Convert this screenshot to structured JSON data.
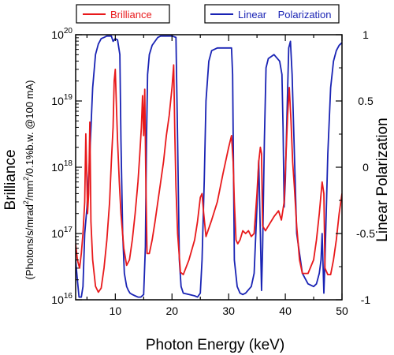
{
  "chart_data": {
    "type": "line",
    "xlabel": "Photon Energy (keV)",
    "ylabel": "Brilliance",
    "ylabel_units_parts": [
      "(Photons/s/mrad",
      "2",
      "/mm",
      "2",
      "/0.1%b.w. @100 mA)"
    ],
    "y2label": "Linear Polarization",
    "xlim": [
      3,
      50
    ],
    "ylim": [
      1e+16,
      1e+20
    ],
    "yscale": "log",
    "y2lim": [
      -1,
      1
    ],
    "xticks": [
      "10",
      "20",
      "30",
      "40",
      "50"
    ],
    "yticks": [
      {
        "base": "10",
        "exp": "16"
      },
      {
        "base": "10",
        "exp": "17"
      },
      {
        "base": "10",
        "exp": "18"
      },
      {
        "base": "10",
        "exp": "19"
      },
      {
        "base": "10",
        "exp": "20"
      }
    ],
    "y2ticks": [
      "-1",
      "-0.5",
      "0",
      "0.5",
      "1"
    ],
    "grid": false,
    "legend": [
      {
        "name": "Brilliance",
        "color": "#e8191b",
        "axis": "left"
      },
      {
        "name": "Linear    Polarization",
        "color": "#1923b4",
        "axis": "right"
      }
    ],
    "series": [
      {
        "name": "Brilliance",
        "color": "#e8191b",
        "axis": "left",
        "x": [
          3,
          3.3,
          3.7,
          4.0,
          4.3,
          4.6,
          4.8,
          5.0,
          5.1,
          5.3,
          5.5,
          5.7,
          6.0,
          6.5,
          7.0,
          7.5,
          8.0,
          8.5,
          9.0,
          9.3,
          9.6,
          9.8,
          10.0,
          10.2,
          10.4,
          10.7,
          11.0,
          11.5,
          12.0,
          12.5,
          13.0,
          13.5,
          14.0,
          14.3,
          14.6,
          14.8,
          15.0,
          15.2,
          15.4,
          15.6,
          16.0,
          16.5,
          17.0,
          17.5,
          18.0,
          18.5,
          19.0,
          19.5,
          20.0,
          20.3,
          20.5,
          20.7,
          21.0,
          21.5,
          22,
          23,
          24,
          24.5,
          25,
          25.3,
          25.6,
          26,
          27,
          28,
          29,
          30,
          30.5,
          30.8,
          31.0,
          31.3,
          31.6,
          32,
          32.5,
          33,
          33.5,
          34,
          34.5,
          35,
          35.3,
          35.6,
          35.8,
          36.0,
          36.5,
          37,
          38,
          38.8,
          39.3,
          39.8,
          40.1,
          40.4,
          40.7,
          41.0,
          41.3,
          41.6,
          42,
          42.5,
          43,
          44,
          45,
          45.5,
          46,
          46.5,
          46.8,
          47,
          47.5,
          48,
          48.5,
          49,
          49.5,
          50
        ],
        "y": [
          7e+16,
          4e+16,
          3e+16,
          5e+16,
          1e+17,
          3e+17,
          3.2e+18,
          5.5e+17,
          2e+17,
          4e+17,
          4.8e+18,
          1.5e+17,
          4e+16,
          1.6e+16,
          1.3e+16,
          1.5e+16,
          3e+16,
          8e+16,
          3e+17,
          1.2e+18,
          4e+18,
          2e+19,
          3e+19,
          8e+18,
          2.5e+18,
          6e+17,
          2e+17,
          6e+16,
          3.3e+16,
          4e+16,
          8e+16,
          2e+17,
          6e+17,
          1.5e+18,
          4e+18,
          1.2e+19,
          3e+18,
          1.5e+19,
          5e+17,
          5e+16,
          5e+16,
          8e+16,
          1.5e+17,
          3e+17,
          6e+17,
          1.2e+18,
          3e+18,
          6e+18,
          1.6e+19,
          3.5e+19,
          3e+18,
          5e+17,
          1e+17,
          2.6e+16,
          2.4e+16,
          4e+16,
          8e+16,
          1.5e+17,
          3.5e+17,
          4e+17,
          2e+17,
          9e+16,
          1.6e+17,
          3e+17,
          8e+17,
          2e+18,
          3e+18,
          1.2e+18,
          3e+17,
          8e+16,
          7e+16,
          8e+16,
          1.1e+17,
          1e+17,
          1.1e+17,
          9e+16,
          1e+17,
          4e+17,
          1.2e+18,
          2e+18,
          1.6e+18,
          1.3e+17,
          1.1e+17,
          1.3e+17,
          1.8e+17,
          2.2e+17,
          1.6e+17,
          3e+17,
          1.4e+18,
          6e+18,
          1.6e+19,
          5e+18,
          1.2e+18,
          5e+17,
          1.3e+17,
          4e+16,
          2.5e+16,
          2.5e+16,
          4e+16,
          8e+16,
          2e+17,
          6e+17,
          4e+17,
          3e+16,
          2.4e+16,
          2.4e+16,
          4e+16,
          8e+16,
          2e+17,
          4e+17
        ]
      },
      {
        "name": "Linear    Polarization",
        "color": "#1923b4",
        "axis": "right",
        "x": [
          3,
          3.3,
          3.6,
          4.0,
          4.3,
          4.6,
          5.0,
          5.5,
          6.0,
          6.5,
          7.0,
          7.5,
          8.0,
          8.5,
          9.0,
          9.3,
          9.6,
          10.0,
          10.4,
          10.8,
          11.0,
          11.3,
          11.6,
          12.0,
          12.3,
          12.6,
          13.0,
          13.5,
          14,
          14.5,
          15.0,
          15.3,
          15.5,
          15.7,
          16.0,
          16.5,
          17.0,
          17.5,
          18,
          19,
          20,
          20.7,
          21.0,
          21.3,
          21.6,
          22.0,
          23,
          24,
          24.5,
          25.0,
          25.3,
          25.7,
          26,
          26.5,
          27,
          28,
          29,
          30,
          30.5,
          30.7,
          31.0,
          31.5,
          32.0,
          32.5,
          33,
          34,
          34.5,
          35,
          35.3,
          35.6,
          35.8,
          36.0,
          36.3,
          36.6,
          37,
          38,
          39,
          39.4,
          39.6,
          39.8,
          40.0,
          40.3,
          40.6,
          40.9,
          41.2,
          41.6,
          42,
          43,
          44,
          45,
          45.5,
          46,
          46.3,
          46.5,
          46.8,
          47.0,
          47.5,
          48,
          48.5,
          49,
          49.5,
          50
        ],
        "y": [
          -0.7,
          -0.85,
          -0.98,
          -0.98,
          -0.9,
          -0.5,
          -0.3,
          0.1,
          0.6,
          0.85,
          0.93,
          0.97,
          0.98,
          0.99,
          0.99,
          0.99,
          0.95,
          0.97,
          0.96,
          0.85,
          0.2,
          -0.5,
          -0.8,
          -0.9,
          -0.93,
          -0.95,
          -0.96,
          -0.97,
          -0.98,
          -0.98,
          -0.96,
          -0.6,
          0.2,
          0.7,
          0.85,
          0.92,
          0.95,
          0.98,
          0.99,
          0.99,
          0.99,
          0.98,
          0.2,
          -0.7,
          -0.9,
          -0.95,
          -0.96,
          -0.97,
          -0.98,
          -0.95,
          -0.7,
          -0.1,
          0.5,
          0.8,
          0.88,
          0.9,
          0.9,
          0.9,
          0.9,
          0.7,
          -0.7,
          -0.9,
          -0.95,
          -0.96,
          -0.95,
          -0.9,
          -0.8,
          -0.3,
          0.05,
          -0.5,
          -0.93,
          -0.6,
          0.2,
          0.75,
          0.82,
          0.85,
          0.8,
          0.7,
          0.3,
          -0.3,
          -0.1,
          0.4,
          0.9,
          0.95,
          0.7,
          0.1,
          -0.5,
          -0.8,
          -0.88,
          -0.9,
          -0.88,
          -0.8,
          -0.7,
          -0.5,
          -0.95,
          -0.7,
          0.1,
          0.6,
          0.8,
          0.88,
          0.92,
          0.94
        ]
      }
    ]
  }
}
